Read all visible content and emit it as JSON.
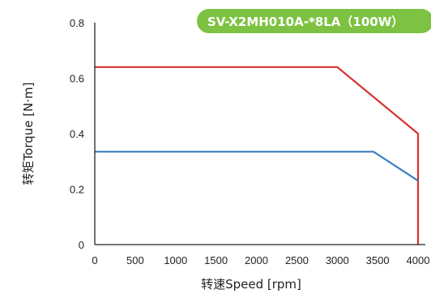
{
  "chart_data": {
    "type": "line",
    "title": "SV-X2MH010A-*8LA（100W）",
    "xlabel": "转速Speed [rpm]",
    "ylabel": "转矩Torque [N·m]",
    "xlim": [
      0,
      4000
    ],
    "ylim": [
      0,
      0.8
    ],
    "xticks": [
      "0",
      "500",
      "1000",
      "1500",
      "2000",
      "2500",
      "3000",
      "3500",
      "4000"
    ],
    "yticks": [
      "0",
      "0.2",
      "0.4",
      "0.6",
      "0.8"
    ],
    "grid": false,
    "series": [
      {
        "color": "#d9302c",
        "x": [
          0,
          3000,
          4000,
          4000
        ],
        "y": [
          0.64,
          0.64,
          0.4,
          0.0
        ]
      },
      {
        "color": "#3a7dc2",
        "x": [
          0,
          3450,
          4000
        ],
        "y": [
          0.335,
          0.335,
          0.23
        ]
      }
    ]
  },
  "colors": {
    "badge": "#7dc242",
    "axis": "#222222"
  }
}
